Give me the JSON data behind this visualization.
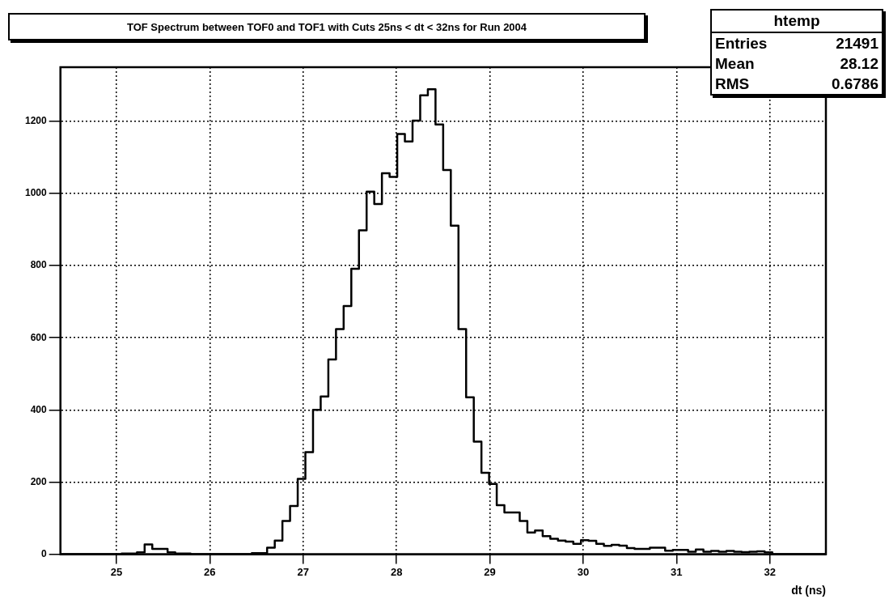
{
  "chart_data": {
    "type": "histogram",
    "title": "TOF Spectrum between TOF0 and TOF1 with Cuts 25ns < dt < 32ns for Run 2004",
    "xlabel": "dt (ns)",
    "bins": [
      24.4,
      24.482,
      24.564,
      24.646,
      24.728,
      24.81,
      24.892,
      24.974,
      25.056,
      25.138,
      25.22,
      25.302,
      25.384,
      25.466,
      25.548,
      25.63,
      25.712,
      25.794,
      25.876,
      25.958,
      26.04,
      26.122,
      26.204,
      26.286,
      26.368,
      26.45,
      26.532,
      26.614,
      26.696,
      26.778,
      26.86,
      26.942,
      27.024,
      27.106,
      27.188,
      27.27,
      27.352,
      27.434,
      27.516,
      27.598,
      27.68,
      27.762,
      27.844,
      27.926,
      28.008,
      28.09,
      28.172,
      28.254,
      28.336,
      28.418,
      28.5,
      28.582,
      28.664,
      28.746,
      28.828,
      28.91,
      28.992,
      29.074,
      29.156,
      29.238,
      29.32,
      29.402,
      29.484,
      29.566,
      29.648,
      29.73,
      29.812,
      29.894,
      29.976,
      30.058,
      30.14,
      30.222,
      30.304,
      30.386,
      30.468,
      30.55,
      30.632,
      30.714,
      30.796,
      30.878,
      30.96,
      31.042,
      31.124,
      31.206,
      31.288,
      31.37,
      31.452,
      31.534,
      31.616,
      31.698,
      31.78,
      31.862,
      31.944,
      32.026,
      32.108,
      32.19,
      32.272,
      32.354,
      32.436,
      32.518,
      32.6
    ],
    "values": [
      0,
      0,
      0,
      0,
      0,
      0,
      0,
      0,
      2,
      2,
      5,
      27,
      15,
      15,
      5,
      2,
      2,
      0,
      0,
      0,
      0,
      0,
      0,
      0,
      0,
      3,
      3,
      18,
      38,
      92,
      134,
      209,
      283,
      400,
      437,
      540,
      624,
      688,
      791,
      898,
      1005,
      971,
      1056,
      1046,
      1165,
      1144,
      1202,
      1272,
      1289,
      1191,
      1065,
      911,
      624,
      435,
      312,
      226,
      195,
      136,
      116,
      116,
      92,
      60,
      66,
      50,
      43,
      38,
      35,
      29,
      39,
      37,
      29,
      23,
      26,
      24,
      17,
      15,
      15,
      18,
      18,
      10,
      12,
      12,
      7,
      13,
      7,
      9,
      7,
      9,
      7,
      6,
      7,
      8,
      5,
      0,
      0,
      0,
      0,
      0,
      0,
      0
    ],
    "color": "#000000",
    "xlim": [
      24.4,
      32.6
    ],
    "xticks": [
      25,
      26,
      27,
      28,
      29,
      30,
      31,
      32
    ],
    "ylim": [
      0,
      1350
    ],
    "yticks": [
      0,
      200,
      400,
      600,
      800,
      1000,
      1200
    ],
    "grid": true,
    "line_style": "solid",
    "annotations": [
      "htemp",
      "Entries",
      "21491",
      "Mean",
      "28.12",
      "RMS",
      "0.6786"
    ]
  }
}
